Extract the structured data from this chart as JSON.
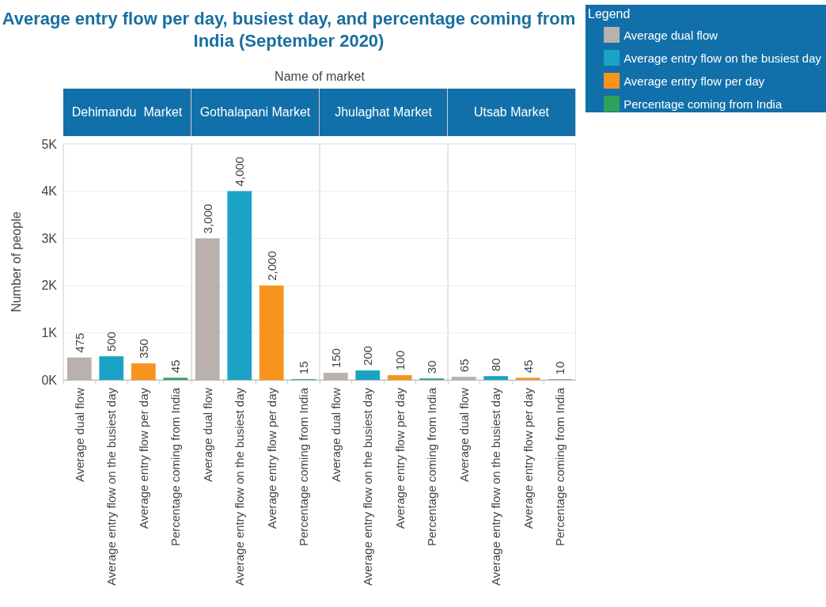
{
  "chart_data": [
    {
      "type": "bar",
      "title": "Average entry flow per day, busiest day, and percentage coming from India (September 2020)",
      "subtitle": "Dehimandu  Market",
      "annotations": [
        "Name of market"
      ],
      "ylabel": "Number of people",
      "legend_title": "Legend",
      "legend": "top right",
      "categories": [
        "Average dual flow",
        "Average entry flow on the busiest day",
        "Average entry flow per day",
        "Percentage coming from India"
      ],
      "series": [
        {
          "name": "Average dual flow",
          "color": "#bab0ac",
          "values": [
            475,
            null,
            null,
            null
          ],
          "value_labels": [
            "475",
            null,
            null,
            null
          ]
        },
        {
          "name": "Average entry flow on the busiest day",
          "color": "#1ba3c6",
          "values": [
            null,
            500,
            null,
            null
          ],
          "value_labels": [
            null,
            "500",
            null,
            null
          ]
        },
        {
          "name": "Average entry flow per day",
          "color": "#f7941d",
          "values": [
            null,
            null,
            350,
            null
          ],
          "value_labels": [
            null,
            null,
            "350",
            null
          ]
        },
        {
          "name": "Percentage coming from India",
          "color": "#2ca35a",
          "values": [
            null,
            null,
            null,
            45
          ],
          "value_labels": [
            null,
            null,
            null,
            "45"
          ]
        }
      ],
      "ylim": [
        0,
        5000
      ],
      "yticks": [
        {
          "value": 0,
          "label": "0K"
        },
        {
          "value": 1000,
          "label": "1K"
        },
        {
          "value": 2000,
          "label": "2K"
        },
        {
          "value": 3000,
          "label": "3K"
        },
        {
          "value": 4000,
          "label": "4K"
        },
        {
          "value": 5000,
          "label": "5K"
        }
      ],
      "grid": "y"
    },
    {
      "type": "bar",
      "subtitle": "Gothalapani Market",
      "categories": [
        "Average dual flow",
        "Average entry flow on the busiest day",
        "Average entry flow per day",
        "Percentage coming from India"
      ],
      "series": [
        {
          "color": "#bab0ac",
          "values": [
            3000,
            null,
            null,
            null
          ],
          "value_labels": [
            "3,000",
            null,
            null,
            null
          ]
        },
        {
          "color": "#1ba3c6",
          "values": [
            null,
            4000,
            null,
            null
          ],
          "value_labels": [
            null,
            "4,000",
            null,
            null
          ]
        },
        {
          "color": "#f7941d",
          "values": [
            null,
            null,
            2000,
            null
          ],
          "value_labels": [
            null,
            null,
            "2,000",
            null
          ]
        },
        {
          "color": "#2ca35a",
          "values": [
            null,
            null,
            null,
            15
          ],
          "value_labels": [
            null,
            null,
            null,
            "15"
          ]
        }
      ],
      "ylim": [
        0,
        5000
      ],
      "yticks": [
        0,
        1000,
        2000,
        3000,
        4000,
        5000
      ],
      "grid": "y",
      "tick_labels": "x"
    },
    {
      "type": "bar",
      "subtitle": "Jhulaghat Market",
      "categories": [
        "Average dual flow",
        "Average entry flow on the busiest day",
        "Average entry flow per day",
        "Percentage coming from India"
      ],
      "series": [
        {
          "color": "#bab0ac",
          "values": [
            150,
            null,
            null,
            null
          ],
          "value_labels": [
            "150",
            null,
            null,
            null
          ]
        },
        {
          "color": "#1ba3c6",
          "values": [
            null,
            200,
            null,
            null
          ],
          "value_labels": [
            null,
            "200",
            null,
            null
          ]
        },
        {
          "color": "#f7941d",
          "values": [
            null,
            null,
            100,
            null
          ],
          "value_labels": [
            null,
            null,
            "100",
            null
          ]
        },
        {
          "color": "#2ca35a",
          "values": [
            null,
            null,
            null,
            30
          ],
          "value_labels": [
            null,
            null,
            null,
            "30"
          ]
        }
      ],
      "ylim": [
        0,
        5000
      ],
      "yticks": [
        0,
        1000,
        2000,
        3000,
        4000,
        5000
      ],
      "grid": "y",
      "tick_labels": "x"
    },
    {
      "type": "bar",
      "subtitle": "Utsab Market",
      "categories": [
        "Average dual flow",
        "Average entry flow on the busiest day",
        "Average entry flow per day",
        "Percentage coming from India"
      ],
      "series": [
        {
          "color": "#bab0ac",
          "values": [
            65,
            null,
            null,
            null
          ],
          "value_labels": [
            "65",
            null,
            null,
            null
          ]
        },
        {
          "color": "#1ba3c6",
          "values": [
            null,
            80,
            null,
            null
          ],
          "value_labels": [
            null,
            "80",
            null,
            null
          ]
        },
        {
          "color": "#f7941d",
          "values": [
            null,
            null,
            45,
            null
          ],
          "value_labels": [
            null,
            null,
            "45",
            null
          ]
        },
        {
          "color": "#2ca35a",
          "values": [
            null,
            null,
            null,
            10
          ],
          "value_labels": [
            null,
            null,
            null,
            "10"
          ]
        }
      ],
      "ylim": [
        0,
        5000
      ],
      "yticks": [
        0,
        1000,
        2000,
        3000,
        4000,
        5000
      ],
      "grid": "y",
      "tick_labels": "x"
    }
  ]
}
